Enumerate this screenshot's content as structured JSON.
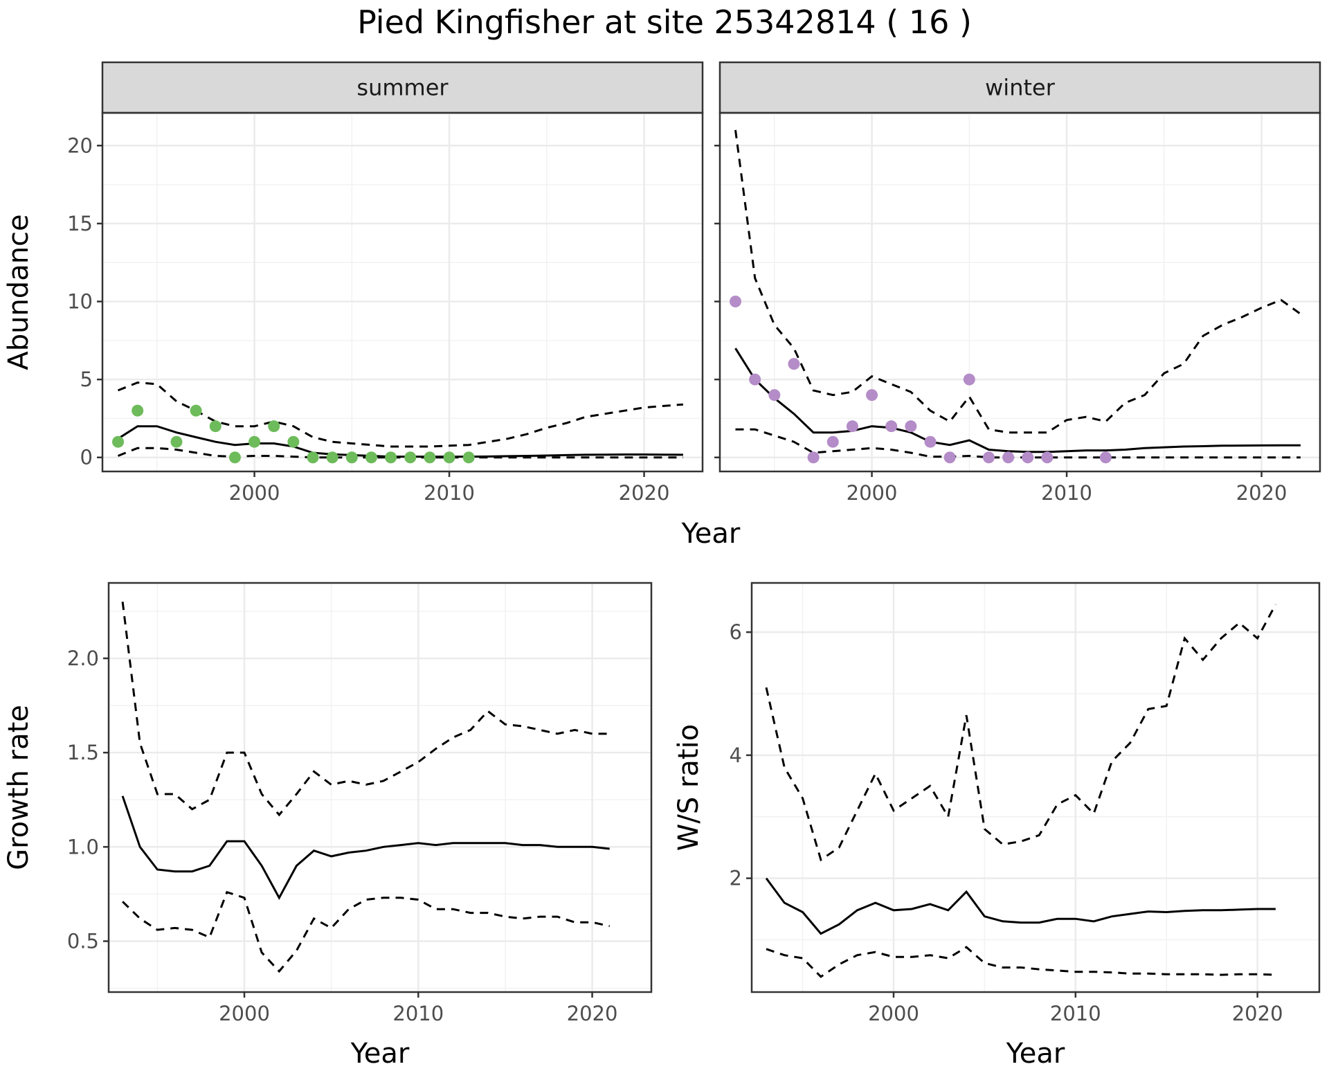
{
  "title": "Pied Kingfisher at site 25342814 ( 16 )",
  "colors": {
    "summer_points": "#6dbb5a",
    "winter_points": "#b48cc8",
    "line": "#000000"
  },
  "chart_data": [
    {
      "id": "summer",
      "type": "line",
      "strip": "summer",
      "ylabel": "Abundance",
      "xlabel": "Year",
      "xlim": [
        1992.2,
        2023.0
      ],
      "ylim": [
        -0.9,
        22.1
      ],
      "xticks": [
        2000,
        2010,
        2020
      ],
      "yticks": [
        0,
        5,
        10,
        15,
        20
      ],
      "grid": true,
      "years": [
        1993,
        1994,
        1995,
        1996,
        1997,
        1998,
        1999,
        2000,
        2001,
        2002,
        2003,
        2004,
        2005,
        2006,
        2007,
        2008,
        2009,
        2010,
        2011,
        2012,
        2013,
        2014,
        2015,
        2016,
        2017,
        2018,
        2019,
        2020,
        2021,
        2022
      ],
      "fit": [
        1.2,
        2.0,
        2.0,
        1.6,
        1.3,
        1.0,
        0.8,
        0.9,
        0.9,
        0.7,
        0.3,
        0.2,
        0.15,
        0.1,
        0.05,
        0.05,
        0.05,
        0.05,
        0.05,
        0.06,
        0.08,
        0.1,
        0.12,
        0.15,
        0.17,
        0.18,
        0.19,
        0.19,
        0.18,
        0.17
      ],
      "upper": [
        4.3,
        4.8,
        4.7,
        3.6,
        3.0,
        2.3,
        2.0,
        2.0,
        2.3,
        2.0,
        1.3,
        1.0,
        0.9,
        0.8,
        0.7,
        0.7,
        0.7,
        0.75,
        0.8,
        1.0,
        1.2,
        1.5,
        1.9,
        2.2,
        2.6,
        2.8,
        3.0,
        3.2,
        3.3,
        3.4
      ],
      "lower": [
        0.1,
        0.6,
        0.6,
        0.5,
        0.3,
        0.1,
        0.05,
        0.1,
        0.1,
        0.05,
        0.0,
        0.0,
        0.0,
        0.0,
        0.0,
        0.0,
        0.0,
        0.0,
        0.0,
        0.0,
        0.0,
        0.0,
        0.0,
        0.0,
        0.0,
        0.0,
        0.0,
        0.0,
        0.0,
        0.0
      ],
      "points": {
        "x": [
          1993,
          1994,
          1996,
          1997,
          1998,
          1999,
          2000,
          2001,
          2002,
          2003,
          2004,
          2005,
          2006,
          2007,
          2008,
          2009,
          2010,
          2011
        ],
        "y": [
          1,
          3,
          1,
          3,
          2,
          0,
          1,
          2,
          1,
          0,
          0,
          0,
          0,
          0,
          0,
          0,
          0,
          0
        ]
      }
    },
    {
      "id": "winter",
      "type": "line",
      "strip": "winter",
      "ylabel": "",
      "xlabel": "Year",
      "xlim": [
        1992.2,
        2023.0
      ],
      "ylim": [
        -0.9,
        22.1
      ],
      "xticks": [
        2000,
        2010,
        2020
      ],
      "yticks": [
        0,
        5,
        10,
        15,
        20
      ],
      "grid": true,
      "years": [
        1993,
        1994,
        1995,
        1996,
        1997,
        1998,
        1999,
        2000,
        2001,
        2002,
        2003,
        2004,
        2005,
        2006,
        2007,
        2008,
        2009,
        2010,
        2011,
        2012,
        2013,
        2014,
        2015,
        2016,
        2017,
        2018,
        2019,
        2020,
        2021,
        2022
      ],
      "fit": [
        7.0,
        5.0,
        3.8,
        2.8,
        1.6,
        1.6,
        1.7,
        2.0,
        1.9,
        1.6,
        1.0,
        0.8,
        1.1,
        0.5,
        0.4,
        0.35,
        0.35,
        0.4,
        0.45,
        0.45,
        0.5,
        0.6,
        0.65,
        0.7,
        0.72,
        0.75,
        0.76,
        0.77,
        0.78,
        0.78
      ],
      "upper": [
        21.0,
        11.5,
        8.5,
        7.0,
        4.3,
        4.0,
        4.2,
        5.2,
        4.7,
        4.2,
        3.0,
        2.3,
        3.9,
        1.8,
        1.6,
        1.6,
        1.6,
        2.4,
        2.6,
        2.3,
        3.5,
        4.0,
        5.4,
        6.0,
        7.8,
        8.5,
        9.0,
        9.6,
        10.1,
        9.2
      ],
      "lower": [
        1.8,
        1.8,
        1.4,
        1.0,
        0.3,
        0.4,
        0.5,
        0.6,
        0.5,
        0.3,
        0.05,
        0.05,
        0.1,
        0.0,
        0.0,
        0.0,
        0.0,
        0.0,
        0.0,
        0.0,
        0.0,
        0.0,
        0.0,
        0.0,
        0.0,
        0.0,
        0.0,
        0.0,
        0.0,
        0.0
      ],
      "points": {
        "x": [
          1993,
          1994,
          1995,
          1996,
          1997,
          1998,
          1999,
          2000,
          2001,
          2002,
          2003,
          2004,
          2005,
          2006,
          2007,
          2008,
          2009,
          2012
        ],
        "y": [
          10,
          5,
          4,
          6,
          0,
          1,
          2,
          4,
          2,
          2,
          1,
          0,
          5,
          0,
          0,
          0,
          0,
          0
        ]
      }
    },
    {
      "id": "growth",
      "type": "line",
      "ylabel": "Growth rate",
      "xlabel": "Year",
      "xlim": [
        1992.2,
        2023.4
      ],
      "ylim": [
        0.23,
        2.4
      ],
      "xticks": [
        2000,
        2010,
        2020
      ],
      "yticks": [
        0.5,
        1.0,
        1.5,
        2.0
      ],
      "ytick_labels": [
        "0.5",
        "1.0",
        "1.5",
        "2.0"
      ],
      "grid": true,
      "years": [
        1993,
        1994,
        1995,
        1996,
        1997,
        1998,
        1999,
        2000,
        2001,
        2002,
        2003,
        2004,
        2005,
        2006,
        2007,
        2008,
        2009,
        2010,
        2011,
        2012,
        2013,
        2014,
        2015,
        2016,
        2017,
        2018,
        2019,
        2020,
        2021
      ],
      "fit": [
        1.27,
        1.0,
        0.88,
        0.87,
        0.87,
        0.9,
        1.03,
        1.03,
        0.9,
        0.73,
        0.9,
        0.98,
        0.95,
        0.97,
        0.98,
        1.0,
        1.01,
        1.02,
        1.01,
        1.02,
        1.02,
        1.02,
        1.02,
        1.01,
        1.01,
        1.0,
        1.0,
        1.0,
        0.99
      ],
      "upper": [
        2.3,
        1.55,
        1.28,
        1.28,
        1.2,
        1.25,
        1.5,
        1.5,
        1.28,
        1.17,
        1.28,
        1.4,
        1.33,
        1.35,
        1.33,
        1.35,
        1.4,
        1.45,
        1.52,
        1.58,
        1.62,
        1.72,
        1.65,
        1.64,
        1.62,
        1.6,
        1.62,
        1.6,
        1.6
      ],
      "lower": [
        0.71,
        0.62,
        0.56,
        0.57,
        0.56,
        0.52,
        0.76,
        0.73,
        0.44,
        0.34,
        0.45,
        0.62,
        0.57,
        0.67,
        0.72,
        0.73,
        0.73,
        0.72,
        0.67,
        0.67,
        0.65,
        0.65,
        0.63,
        0.62,
        0.63,
        0.63,
        0.6,
        0.6,
        0.58
      ]
    },
    {
      "id": "ratio",
      "type": "line",
      "ylabel": "W/S ratio",
      "xlabel": "Year",
      "xlim": [
        1992.2,
        2023.4
      ],
      "ylim": [
        0.15,
        6.8
      ],
      "xticks": [
        2000,
        2010,
        2020
      ],
      "yticks": [
        2,
        4,
        6
      ],
      "ytick_labels": [
        "2",
        "4",
        "6"
      ],
      "grid": true,
      "years": [
        1993,
        1994,
        1995,
        1996,
        1997,
        1998,
        1999,
        2000,
        2001,
        2002,
        2003,
        2004,
        2005,
        2006,
        2007,
        2008,
        2009,
        2010,
        2011,
        2012,
        2013,
        2014,
        2015,
        2016,
        2017,
        2018,
        2019,
        2020,
        2021
      ],
      "fit": [
        2.0,
        1.6,
        1.45,
        1.1,
        1.25,
        1.48,
        1.6,
        1.48,
        1.5,
        1.58,
        1.48,
        1.78,
        1.38,
        1.3,
        1.28,
        1.28,
        1.34,
        1.34,
        1.3,
        1.38,
        1.42,
        1.46,
        1.45,
        1.47,
        1.48,
        1.48,
        1.49,
        1.5,
        1.5
      ],
      "upper": [
        5.1,
        3.8,
        3.3,
        2.3,
        2.5,
        3.1,
        3.7,
        3.1,
        3.3,
        3.5,
        3.0,
        4.65,
        2.8,
        2.55,
        2.6,
        2.7,
        3.2,
        3.35,
        3.05,
        3.9,
        4.2,
        4.75,
        4.8,
        5.9,
        5.55,
        5.9,
        6.15,
        5.9,
        6.45
      ],
      "lower": [
        0.85,
        0.75,
        0.7,
        0.4,
        0.6,
        0.75,
        0.8,
        0.72,
        0.72,
        0.75,
        0.7,
        0.88,
        0.62,
        0.55,
        0.55,
        0.52,
        0.5,
        0.48,
        0.48,
        0.47,
        0.45,
        0.45,
        0.44,
        0.44,
        0.44,
        0.43,
        0.44,
        0.44,
        0.43
      ]
    }
  ]
}
